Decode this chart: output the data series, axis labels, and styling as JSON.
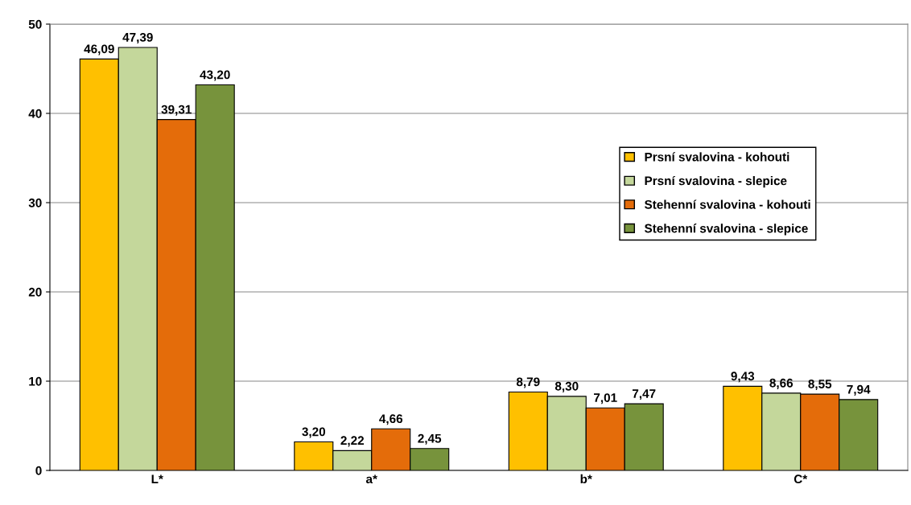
{
  "chart_data": {
    "type": "bar",
    "categories": [
      "L*",
      "a*",
      "b*",
      "C*"
    ],
    "series": [
      {
        "name": "Prsní svalovina - kohouti",
        "color": "#ffc000",
        "values": [
          46.09,
          3.2,
          8.79,
          9.43
        ],
        "value_labels": [
          "46,09",
          "3,20",
          "8,79",
          "9,43"
        ]
      },
      {
        "name": "Prsní svalovina - slepice",
        "color": "#c4d79b",
        "values": [
          47.39,
          2.22,
          8.3,
          8.66
        ],
        "value_labels": [
          "47,39",
          "2,22",
          "8,30",
          "8,66"
        ]
      },
      {
        "name": "Stehenní svalovina - kohouti",
        "color": "#e46c0a",
        "values": [
          39.31,
          4.66,
          7.01,
          8.55
        ],
        "value_labels": [
          "39,31",
          "4,66",
          "7,01",
          "8,55"
        ]
      },
      {
        "name": "Stehenní svalovina - slepice",
        "color": "#77933c",
        "values": [
          43.2,
          2.45,
          7.47,
          7.94
        ],
        "value_labels": [
          "43,20",
          "2,45",
          "7,47",
          "7,94"
        ]
      }
    ],
    "ylim": [
      0,
      50
    ],
    "yticks": [
      0,
      10,
      20,
      30,
      40,
      50
    ],
    "grid": "y",
    "legend": "right"
  }
}
